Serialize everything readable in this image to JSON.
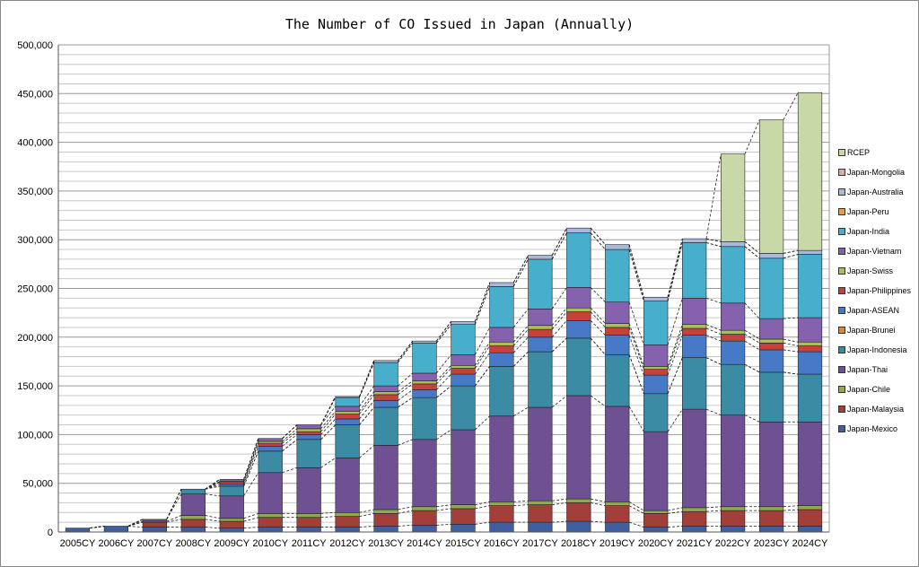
{
  "chart_data": {
    "type": "bar",
    "stacked": true,
    "title": "The Number of CO Issued in Japan (Annually)",
    "xlabel": "",
    "ylabel": "",
    "ylim": [
      0,
      500000
    ],
    "yticks": [
      "0",
      "50,000",
      "100,000",
      "150,000",
      "200,000",
      "250,000",
      "300,000",
      "350,000",
      "400,000",
      "450,000",
      "500,000"
    ],
    "grid": true,
    "legend_position": "right",
    "categories": [
      "2005CY",
      "2006CY",
      "2007CY",
      "2008CY",
      "2009CY",
      "2010CY",
      "2011CY",
      "2012CY",
      "2013CY",
      "2014CY",
      "2015CY",
      "2016CY",
      "2017CY",
      "2018CY",
      "2019CY",
      "2020CY",
      "2021CY",
      "2022CY",
      "2023CY",
      "2024CY"
    ],
    "series": [
      {
        "name": "Japan-Mexico",
        "color": "#3F5FA0",
        "values": [
          4000,
          6000,
          5000,
          5000,
          4000,
          5000,
          5000,
          5000,
          6000,
          7000,
          8000,
          10000,
          10000,
          11000,
          10000,
          5000,
          6000,
          6000,
          6000,
          6000
        ]
      },
      {
        "name": "Japan-Malaysia",
        "color": "#A33F3A",
        "values": [
          0,
          0,
          5000,
          8000,
          7000,
          10000,
          10000,
          11000,
          13000,
          15000,
          16000,
          17000,
          18000,
          19000,
          17000,
          14000,
          15000,
          16000,
          16000,
          17000
        ]
      },
      {
        "name": "Japan-Chile",
        "color": "#8FAA4C",
        "values": [
          0,
          0,
          1000,
          4000,
          3000,
          4000,
          4000,
          4000,
          4000,
          4000,
          4000,
          4000,
          4000,
          4000,
          4000,
          3000,
          4000,
          4000,
          4000,
          4000
        ]
      },
      {
        "name": "Japan-Thai",
        "color": "#6F5193",
        "values": [
          0,
          0,
          2000,
          22000,
          23000,
          42000,
          47000,
          56000,
          66000,
          69000,
          77000,
          88000,
          96000,
          106000,
          98000,
          81000,
          101000,
          94000,
          87000,
          86000
        ]
      },
      {
        "name": "Japan-Indonesia",
        "color": "#3A8BA3",
        "values": [
          0,
          0,
          0,
          5000,
          10000,
          22000,
          29000,
          34000,
          39000,
          43000,
          45000,
          51000,
          57000,
          59000,
          53000,
          39000,
          53000,
          52000,
          51000,
          49000
        ]
      },
      {
        "name": "Japan-Brunei",
        "color": "#D88A3A",
        "values": [
          0,
          0,
          0,
          0,
          0,
          0,
          0,
          0,
          0,
          0,
          0,
          0,
          0,
          0,
          0,
          0,
          0,
          0,
          0,
          0
        ]
      },
      {
        "name": "Japan-ASEAN",
        "color": "#4679C6",
        "values": [
          0,
          0,
          0,
          0,
          2000,
          5000,
          5000,
          6000,
          7000,
          8000,
          12000,
          14000,
          15000,
          18000,
          20000,
          19000,
          23000,
          24000,
          23000,
          23000
        ]
      },
      {
        "name": "Japan-Philippines",
        "color": "#C6403D",
        "values": [
          0,
          0,
          0,
          0,
          2000,
          3000,
          3000,
          5000,
          6000,
          6000,
          6000,
          7000,
          8000,
          9000,
          8000,
          6000,
          7000,
          7000,
          7000,
          6000
        ]
      },
      {
        "name": "Japan-Swiss",
        "color": "#A8C055",
        "values": [
          0,
          0,
          0,
          0,
          1000,
          2000,
          3000,
          3000,
          3000,
          3000,
          3000,
          4000,
          4000,
          4000,
          4000,
          3000,
          4000,
          4000,
          4000,
          4000
        ]
      },
      {
        "name": "Japan-Vietnam",
        "color": "#8561AE",
        "values": [
          0,
          0,
          0,
          0,
          2000,
          3000,
          4000,
          5000,
          6000,
          8000,
          11000,
          15000,
          17000,
          21000,
          22000,
          22000,
          27000,
          28000,
          21000,
          25000
        ]
      },
      {
        "name": "Japan-India",
        "color": "#47AECB",
        "values": [
          0,
          0,
          0,
          0,
          0,
          0,
          0,
          9000,
          24000,
          31000,
          31000,
          42000,
          51000,
          56000,
          54000,
          45000,
          57000,
          58000,
          62000,
          65000
        ]
      },
      {
        "name": "Japan-Peru",
        "color": "#F09B44",
        "values": [
          0,
          0,
          0,
          0,
          0,
          0,
          0,
          0,
          0,
          0,
          0,
          0,
          0,
          0,
          0,
          0,
          0,
          0,
          0,
          0
        ]
      },
      {
        "name": "Japan-Australia",
        "color": "#A9B9DD",
        "values": [
          0,
          0,
          0,
          0,
          0,
          0,
          0,
          1000,
          2000,
          2000,
          3000,
          4000,
          4000,
          5000,
          5000,
          4000,
          4000,
          5000,
          5000,
          4000
        ]
      },
      {
        "name": "Japan-Mongolia",
        "color": "#E0A9A6",
        "values": [
          0,
          0,
          0,
          0,
          0,
          0,
          0,
          0,
          0,
          0,
          0,
          0,
          0,
          0,
          0,
          0,
          0,
          0,
          0,
          0
        ]
      },
      {
        "name": "RCEP",
        "color": "#C8D8A6",
        "values": [
          0,
          0,
          0,
          0,
          0,
          0,
          0,
          0,
          0,
          0,
          0,
          0,
          0,
          0,
          0,
          0,
          0,
          90000,
          137000,
          162000
        ]
      }
    ]
  }
}
